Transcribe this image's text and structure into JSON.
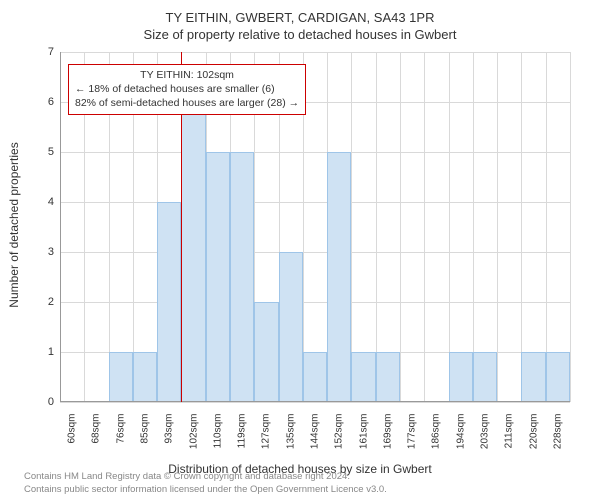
{
  "title": {
    "main": "TY EITHIN, GWBERT, CARDIGAN, SA43 1PR",
    "sub": "Size of property relative to detached houses in Gwbert"
  },
  "chart": {
    "type": "histogram",
    "ylabel": "Number of detached properties",
    "xlabel": "Distribution of detached houses by size in Gwbert",
    "ylim": [
      0,
      7
    ],
    "ytick_step": 1,
    "x_categories": [
      "60sqm",
      "68sqm",
      "76sqm",
      "85sqm",
      "93sqm",
      "102sqm",
      "110sqm",
      "119sqm",
      "127sqm",
      "135sqm",
      "144sqm",
      "152sqm",
      "161sqm",
      "169sqm",
      "177sqm",
      "186sqm",
      "194sqm",
      "203sqm",
      "211sqm",
      "220sqm",
      "228sqm"
    ],
    "values": [
      0,
      0,
      1,
      1,
      4,
      6,
      5,
      5,
      2,
      3,
      1,
      5,
      1,
      1,
      0,
      0,
      1,
      1,
      0,
      1,
      1
    ],
    "bar_fill": "#cfe2f3",
    "bar_stroke": "#9fc5e8",
    "grid_color": "#d9d9d9",
    "axis_color": "#999999",
    "background_color": "#ffffff",
    "bar_width_ratio": 1.0,
    "reference": {
      "bin_index": 5,
      "line_color": "#cc0000"
    },
    "annotation": {
      "lines": [
        "TY EITHIN: 102sqm",
        "← 18% of detached houses are smaller (6)",
        "82% of semi-detached houses are larger (28) →"
      ],
      "border_color": "#cc0000"
    }
  },
  "copyright": {
    "line1": "Contains HM Land Registry data © Crown copyright and database right 2024.",
    "line2": "Contains public sector information licensed under the Open Government Licence v3.0."
  }
}
